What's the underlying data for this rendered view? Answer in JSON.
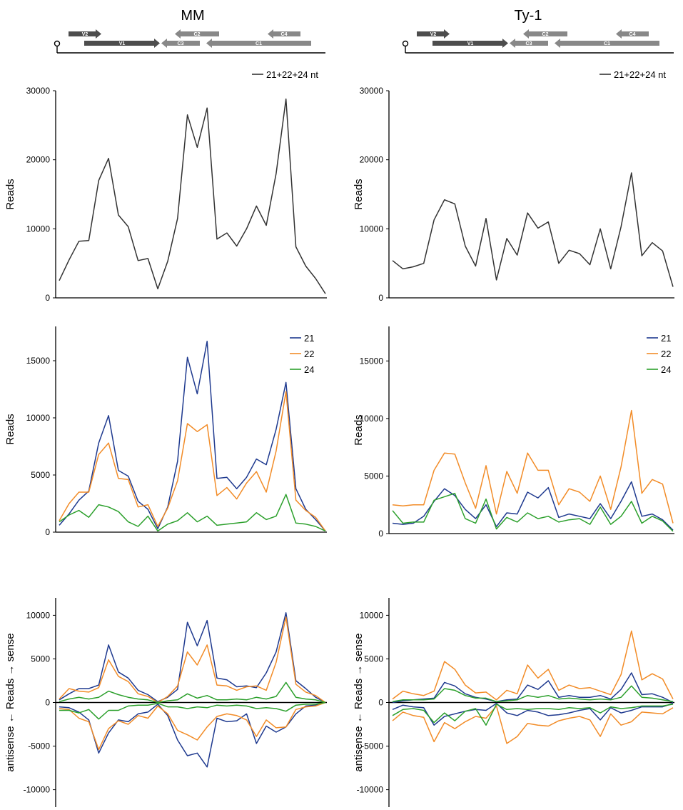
{
  "figure": {
    "columns": [
      {
        "id": "mm",
        "title": "MM"
      },
      {
        "id": "ty1",
        "title": "Ty-1"
      }
    ],
    "genome_map": {
      "genes": [
        "V2",
        "V1",
        "C3",
        "C2",
        "C1",
        "C4"
      ],
      "colors": {
        "V2": "#4d4d4d",
        "V1": "#4d4d4d",
        "C3": "#888888",
        "C2": "#888888",
        "C1": "#888888",
        "C4": "#888888",
        "line": "#000000"
      }
    },
    "colors": {
      "total": "#333333",
      "n21": "#1f3a8f",
      "n22": "#f28c28",
      "n24": "#2ca02c",
      "axis": "#000000"
    }
  },
  "chart_data": [
    {
      "id": "mm-total",
      "type": "line",
      "column": "MM",
      "panel": "total",
      "ylabel": "Reads",
      "ylim": [
        0,
        30000
      ],
      "yticks": [
        0,
        10000,
        20000,
        30000
      ],
      "legend": [
        "21+22+24 nt"
      ],
      "legend_position": "top-right",
      "series": [
        {
          "name": "21+22+24 nt",
          "color": "#333333",
          "values": [
            2500,
            5500,
            8200,
            8300,
            17000,
            20200,
            12000,
            10300,
            5400,
            5700,
            1300,
            5300,
            11500,
            26500,
            21800,
            27500,
            8500,
            9400,
            7500,
            10000,
            13300,
            10500,
            18000,
            28800,
            7400,
            4600,
            2800,
            600
          ]
        }
      ]
    },
    {
      "id": "ty1-total",
      "type": "line",
      "column": "Ty-1",
      "panel": "total",
      "ylabel": "Reads",
      "ylim": [
        0,
        30000
      ],
      "yticks": [
        0,
        10000,
        20000,
        30000
      ],
      "legend": [
        "21+22+24 nt"
      ],
      "legend_position": "top-right",
      "series": [
        {
          "name": "21+22+24 nt",
          "color": "#333333",
          "values": [
            5400,
            4200,
            4500,
            5000,
            11300,
            14200,
            13600,
            7500,
            4600,
            11500,
            2600,
            8600,
            6200,
            12300,
            10100,
            11000,
            5000,
            6900,
            6400,
            4800,
            10000,
            4200,
            10300,
            18100,
            6100,
            8000,
            6800,
            1600
          ]
        }
      ]
    },
    {
      "id": "mm-size",
      "type": "line",
      "column": "MM",
      "panel": "by-size",
      "ylabel": "Reads",
      "ylim": [
        0,
        18000
      ],
      "yticks": [
        0,
        5000,
        10000,
        15000
      ],
      "legend": [
        "21",
        "22",
        "24"
      ],
      "legend_position": "top-right",
      "series": [
        {
          "name": "21",
          "color": "#1f3a8f",
          "values": [
            600,
            1600,
            2800,
            3600,
            7800,
            10200,
            5400,
            4900,
            2700,
            2000,
            300,
            2200,
            6200,
            15300,
            12100,
            16700,
            4700,
            4800,
            3800,
            4800,
            6400,
            5900,
            9000,
            13100,
            3800,
            2000,
            1100,
            100
          ]
        },
        {
          "name": "22",
          "color": "#f28c28",
          "values": [
            1000,
            2500,
            3500,
            3500,
            6800,
            7800,
            4700,
            4600,
            2200,
            2400,
            500,
            2100,
            4500,
            9500,
            8800,
            9400,
            3200,
            3900,
            2900,
            4300,
            5300,
            3500,
            7100,
            12300,
            2800,
            1900,
            1300,
            100
          ]
        },
        {
          "name": "24",
          "color": "#2ca02c",
          "values": [
            900,
            1500,
            1900,
            1300,
            2400,
            2200,
            1800,
            900,
            500,
            1400,
            100,
            700,
            1000,
            1700,
            900,
            1400,
            600,
            700,
            800,
            900,
            1700,
            1100,
            1400,
            3300,
            800,
            700,
            500,
            100
          ]
        }
      ]
    },
    {
      "id": "ty1-size",
      "type": "line",
      "column": "Ty-1",
      "panel": "by-size",
      "ylabel": "Reads",
      "ylim": [
        0,
        18000
      ],
      "yticks": [
        0,
        5000,
        10000,
        15000
      ],
      "legend": [
        "21",
        "22",
        "24"
      ],
      "legend_position": "top-right",
      "series": [
        {
          "name": "21",
          "color": "#1f3a8f",
          "values": [
            900,
            800,
            900,
            1500,
            2800,
            3900,
            3300,
            2100,
            1300,
            2500,
            600,
            1800,
            1700,
            3600,
            3100,
            4000,
            1400,
            1700,
            1500,
            1300,
            2600,
            1300,
            2800,
            4500,
            1500,
            1700,
            1200,
            300
          ]
        },
        {
          "name": "22",
          "color": "#f28c28",
          "values": [
            2500,
            2400,
            2500,
            2500,
            5500,
            7000,
            6900,
            4400,
            2200,
            5900,
            1700,
            5400,
            3500,
            7000,
            5500,
            5500,
            2500,
            3900,
            3600,
            2800,
            5000,
            2100,
            5800,
            10700,
            3500,
            4700,
            4300,
            900
          ]
        },
        {
          "name": "24",
          "color": "#2ca02c",
          "values": [
            2000,
            900,
            1000,
            1000,
            2900,
            3200,
            3500,
            1300,
            900,
            3000,
            400,
            1400,
            1000,
            1800,
            1300,
            1500,
            1000,
            1200,
            1300,
            800,
            2300,
            800,
            1500,
            2800,
            900,
            1500,
            1100,
            200
          ]
        }
      ]
    },
    {
      "id": "mm-strand",
      "type": "line",
      "column": "MM",
      "panel": "strand",
      "ylabel": "antisense ← Reads → sense",
      "ylim": [
        -12000,
        12000
      ],
      "yticks": [
        -10000,
        -5000,
        0,
        5000,
        10000
      ],
      "series": [
        {
          "name": "21 sense",
          "color": "#1f3a8f",
          "values": [
            300,
            1000,
            1600,
            1600,
            2000,
            6600,
            3500,
            2800,
            1400,
            900,
            100,
            600,
            1500,
            9200,
            6500,
            9400,
            2800,
            2600,
            1800,
            1900,
            1700,
            3400,
            5800,
            10300,
            2500,
            1600,
            600,
            0
          ]
        },
        {
          "name": "22 sense",
          "color": "#f28c28",
          "values": [
            400,
            1600,
            1300,
            1200,
            1700,
            4900,
            3000,
            2400,
            1000,
            700,
            0,
            700,
            1900,
            5800,
            4300,
            6600,
            2000,
            1900,
            1400,
            1800,
            1900,
            1400,
            4600,
            9800,
            2100,
            1200,
            800,
            0
          ]
        },
        {
          "name": "24 sense",
          "color": "#2ca02c",
          "values": [
            100,
            400,
            600,
            400,
            600,
            1300,
            900,
            600,
            400,
            300,
            0,
            200,
            300,
            1000,
            500,
            800,
            300,
            300,
            400,
            300,
            600,
            400,
            700,
            2300,
            600,
            400,
            300,
            0
          ]
        },
        {
          "name": "21 antisense",
          "color": "#1f3a8f",
          "values": [
            -500,
            -600,
            -1100,
            -2000,
            -5800,
            -3500,
            -2000,
            -2200,
            -1300,
            -1100,
            -200,
            -1500,
            -4300,
            -6100,
            -5800,
            -7400,
            -1800,
            -2200,
            -2100,
            -1300,
            -4700,
            -2700,
            -3400,
            -2800,
            -1300,
            -400,
            -300,
            0
          ]
        },
        {
          "name": "22 antisense",
          "color": "#f28c28",
          "values": [
            -700,
            -800,
            -1800,
            -2200,
            -5400,
            -3000,
            -2100,
            -2500,
            -1500,
            -1800,
            -400,
            -1300,
            -3200,
            -3700,
            -4300,
            -2800,
            -1600,
            -1300,
            -1500,
            -2000,
            -3900,
            -2000,
            -2900,
            -2800,
            -800,
            -500,
            -400,
            0
          ]
        },
        {
          "name": "24 antisense",
          "color": "#2ca02c",
          "values": [
            -900,
            -900,
            -1200,
            -800,
            -1900,
            -900,
            -900,
            -400,
            -300,
            -300,
            -100,
            -500,
            -500,
            -700,
            -500,
            -600,
            -300,
            -400,
            -300,
            -400,
            -700,
            -600,
            -700,
            -1000,
            -300,
            -200,
            -200,
            0
          ]
        }
      ]
    },
    {
      "id": "ty1-strand",
      "type": "line",
      "column": "Ty-1",
      "panel": "strand",
      "ylabel": "antisense ← Reads → sense",
      "ylim": [
        -12000,
        12000
      ],
      "yticks": [
        -10000,
        -5000,
        0,
        5000,
        10000
      ],
      "series": [
        {
          "name": "21 sense",
          "color": "#1f3a8f",
          "values": [
            0,
            200,
            300,
            400,
            500,
            2300,
            1900,
            1000,
            600,
            400,
            100,
            300,
            400,
            2000,
            1500,
            2500,
            600,
            800,
            600,
            600,
            800,
            400,
            1500,
            3400,
            900,
            1000,
            600,
            0
          ]
        },
        {
          "name": "22 sense",
          "color": "#f28c28",
          "values": [
            400,
            1300,
            1000,
            800,
            1300,
            4700,
            3800,
            2000,
            1100,
            1200,
            300,
            1400,
            1000,
            4300,
            2800,
            3800,
            1400,
            2000,
            1600,
            1700,
            1300,
            900,
            3200,
            8200,
            2600,
            3300,
            2700,
            400
          ]
        },
        {
          "name": "24 sense",
          "color": "#2ca02c",
          "values": [
            100,
            300,
            300,
            300,
            400,
            1600,
            1400,
            800,
            500,
            500,
            100,
            200,
            300,
            800,
            600,
            800,
            400,
            500,
            400,
            300,
            400,
            300,
            600,
            1900,
            600,
            500,
            300,
            100
          ]
        },
        {
          "name": "21 antisense",
          "color": "#1f3a8f",
          "values": [
            -800,
            -300,
            -500,
            -600,
            -2600,
            -1600,
            -1300,
            -1000,
            -800,
            -900,
            -100,
            -1200,
            -1500,
            -900,
            -1100,
            -1500,
            -1400,
            -1200,
            -900,
            -700,
            -2000,
            -600,
            -1200,
            -900,
            -500,
            -500,
            -500,
            -100
          ]
        },
        {
          "name": "22 antisense",
          "color": "#f28c28",
          "values": [
            -2100,
            -1100,
            -1500,
            -1700,
            -4500,
            -2300,
            -3000,
            -2200,
            -1600,
            -1800,
            -400,
            -4700,
            -3900,
            -2400,
            -2600,
            -2700,
            -2100,
            -1800,
            -1600,
            -2000,
            -3900,
            -1300,
            -2600,
            -2200,
            -1100,
            -1200,
            -1300,
            -600
          ]
        },
        {
          "name": "24 antisense",
          "color": "#2ca02c",
          "values": [
            -1500,
            -800,
            -700,
            -900,
            -2300,
            -1200,
            -2100,
            -1000,
            -700,
            -2600,
            -200,
            -800,
            -700,
            -800,
            -700,
            -700,
            -800,
            -600,
            -700,
            -600,
            -1200,
            -500,
            -700,
            -600,
            -400,
            -400,
            -400,
            -200
          ]
        }
      ]
    }
  ]
}
